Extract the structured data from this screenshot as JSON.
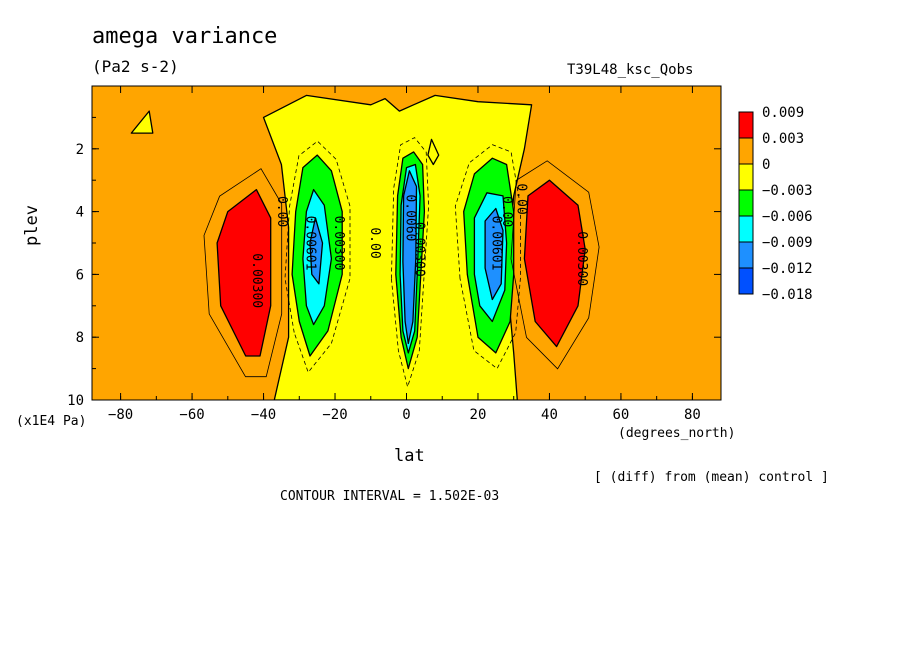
{
  "chart_data": {
    "type": "heatmap",
    "title": "amega variance",
    "subtitle": "(Pa2 s-2)",
    "run_label": "T39L48_ksc_Qobs",
    "xlabel": "lat",
    "x_unit": "(degrees_north)",
    "ylabel": "plev",
    "y_unit": "(x1E4 Pa)",
    "xlim": [
      -88,
      88
    ],
    "ylim": [
      10,
      0
    ],
    "x_ticks": [
      -80,
      -60,
      -40,
      -20,
      0,
      20,
      40,
      60,
      80
    ],
    "y_ticks": [
      2,
      4,
      6,
      8,
      10
    ],
    "colorbar": {
      "labels": [
        "0.009",
        "0.003",
        "0",
        "−0.003",
        "−0.006",
        "−0.009",
        "−0.012",
        "−0.018"
      ],
      "colors": [
        "#ff0000",
        "#ffa500",
        "#ffff00",
        "#00ff00",
        "#00ffff",
        "#1e90ff",
        "#0050ff"
      ]
    },
    "background_color": "#ffa500",
    "regions": [
      {
        "name": "neutral",
        "color": "#ffff00",
        "polygon": [
          [
            -37,
            10
          ],
          [
            -33,
            8
          ],
          [
            -33,
            4.5
          ],
          [
            -35,
            2.5
          ],
          [
            -40,
            1
          ],
          [
            -28,
            0.3
          ],
          [
            -10,
            0.6
          ],
          [
            -6,
            0.4
          ],
          [
            -2,
            0.8
          ],
          [
            2,
            0.6
          ],
          [
            8,
            0.3
          ],
          [
            20,
            0.5
          ],
          [
            35,
            0.6
          ],
          [
            33,
            2
          ],
          [
            30,
            3.5
          ],
          [
            28,
            6
          ],
          [
            30,
            8.5
          ],
          [
            31,
            10
          ]
        ]
      },
      {
        "name": "neutral-patch-north",
        "color": "#ffff00",
        "polygon": [
          [
            -77,
            1.5
          ],
          [
            -72,
            0.8
          ],
          [
            -71,
            1.5
          ]
        ]
      },
      {
        "name": "neutral-patch-eq",
        "color": "#ffff00",
        "polygon": [
          [
            7,
            1.7
          ],
          [
            9,
            2.2
          ],
          [
            7.5,
            2.5
          ],
          [
            6,
            2.2
          ]
        ]
      },
      {
        "name": "positive-west",
        "color": "#ff0000",
        "polygon": [
          [
            -45,
            8.6
          ],
          [
            -52,
            7
          ],
          [
            -53,
            5
          ],
          [
            -50,
            4
          ],
          [
            -42,
            3.3
          ],
          [
            -38,
            4.2
          ],
          [
            -38,
            7
          ],
          [
            -41,
            8.6
          ]
        ]
      },
      {
        "name": "positive-east",
        "color": "#ff0000",
        "polygon": [
          [
            34,
            3.5
          ],
          [
            40,
            3.0
          ],
          [
            48,
            3.8
          ],
          [
            50,
            5.2
          ],
          [
            48,
            7
          ],
          [
            42,
            8.3
          ],
          [
            36,
            7.5
          ],
          [
            33,
            5.5
          ]
        ]
      },
      {
        "name": "neg1-west",
        "color": "#00ff00",
        "polygon": [
          [
            -30,
            7.5
          ],
          [
            -32,
            6
          ],
          [
            -31,
            4
          ],
          [
            -29,
            2.6
          ],
          [
            -25,
            2.2
          ],
          [
            -21,
            2.7
          ],
          [
            -18,
            4.0
          ],
          [
            -18,
            6
          ],
          [
            -22,
            7.8
          ],
          [
            -27,
            8.6
          ]
        ]
      },
      {
        "name": "neg2-west",
        "color": "#00ffff",
        "polygon": [
          [
            -28,
            7
          ],
          [
            -29,
            5.5
          ],
          [
            -28,
            4
          ],
          [
            -26,
            3.3
          ],
          [
            -23,
            3.8
          ],
          [
            -21,
            5.5
          ],
          [
            -23,
            7
          ],
          [
            -26,
            7.6
          ]
        ]
      },
      {
        "name": "neg3-west",
        "color": "#1e90ff",
        "polygon": [
          [
            -26.5,
            6
          ],
          [
            -27,
            5
          ],
          [
            -25.5,
            4.2
          ],
          [
            -23.5,
            5
          ],
          [
            -24.5,
            6.3
          ]
        ]
      },
      {
        "name": "neg1-east",
        "color": "#00ff00",
        "polygon": [
          [
            17,
            6
          ],
          [
            16,
            4
          ],
          [
            19,
            2.8
          ],
          [
            24,
            2.3
          ],
          [
            28,
            2.5
          ],
          [
            30,
            4
          ],
          [
            30,
            6
          ],
          [
            29,
            7.5
          ],
          [
            25,
            8.5
          ],
          [
            20,
            8
          ]
        ]
      },
      {
        "name": "neg2-east",
        "color": "#00ffff",
        "polygon": [
          [
            19,
            6
          ],
          [
            19,
            4.2
          ],
          [
            22.5,
            3.4
          ],
          [
            27,
            3.5
          ],
          [
            28,
            5
          ],
          [
            27.5,
            6.5
          ],
          [
            24,
            7.5
          ],
          [
            20.5,
            7
          ]
        ]
      },
      {
        "name": "neg3-east",
        "color": "#1e90ff",
        "polygon": [
          [
            22,
            5.8
          ],
          [
            22,
            4.3
          ],
          [
            25,
            3.9
          ],
          [
            27,
            4.6
          ],
          [
            26.5,
            6.3
          ],
          [
            24,
            6.8
          ]
        ]
      },
      {
        "name": "neg1-eq",
        "color": "#00ff00",
        "polygon": [
          [
            -3,
            6
          ],
          [
            -2.5,
            3.5
          ],
          [
            -1,
            2.3
          ],
          [
            2,
            2.1
          ],
          [
            4.5,
            2.5
          ],
          [
            5,
            4
          ],
          [
            4,
            6
          ],
          [
            3,
            8
          ],
          [
            0.5,
            9
          ],
          [
            -1.5,
            8
          ]
        ]
      },
      {
        "name": "neg2-eq",
        "color": "#00ffff",
        "polygon": [
          [
            -1.8,
            6
          ],
          [
            -1.5,
            3.8
          ],
          [
            0,
            2.6
          ],
          [
            2.5,
            2.5
          ],
          [
            3.8,
            3.5
          ],
          [
            3,
            6
          ],
          [
            2.3,
            7.8
          ],
          [
            0.5,
            8.5
          ],
          [
            -1,
            7.8
          ]
        ]
      },
      {
        "name": "neg3-eq",
        "color": "#1e90ff",
        "polygon": [
          [
            -1,
            5.6
          ],
          [
            -0.8,
            3.5
          ],
          [
            0.8,
            2.7
          ],
          [
            2.8,
            3.2
          ],
          [
            2.6,
            5.5
          ],
          [
            1.8,
            7.5
          ],
          [
            0.5,
            8.2
          ],
          [
            -0.4,
            7.5
          ]
        ]
      }
    ],
    "contour_labels": [
      {
        "text": "0.00300",
        "lat": -43,
        "plev": 6.2
      },
      {
        "text": "0.00",
        "lat": -36,
        "plev": 4.0
      },
      {
        "text": "0.00601",
        "lat": -28,
        "plev": 5.0
      },
      {
        "text": "0.00300",
        "lat": -20,
        "plev": 5.0
      },
      {
        "text": "0.00",
        "lat": -10,
        "plev": 5.0
      },
      {
        "text": "0.00300",
        "lat": 2.5,
        "plev": 5.2
      },
      {
        "text": "0.0060",
        "lat": 0,
        "plev": 4.2
      },
      {
        "text": "0.00601",
        "lat": 24,
        "plev": 5.0
      },
      {
        "text": "0.00",
        "lat": 31,
        "plev": 3.6
      },
      {
        "text": "0.00",
        "lat": 27,
        "plev": 4.0
      },
      {
        "text": "0.00300",
        "lat": 48,
        "plev": 5.5
      }
    ],
    "diff_note": "[ (diff) from (mean) control ]",
    "contour_interval": "CONTOUR INTERVAL = 1.502E-03"
  }
}
